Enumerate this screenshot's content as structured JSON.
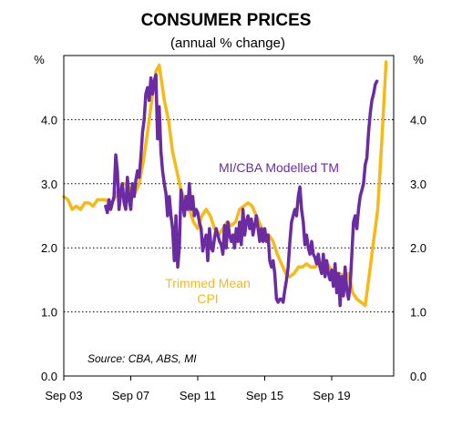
{
  "chart_data": {
    "type": "line",
    "title": "CONSUMER PRICES",
    "subtitle": "(annual % change)",
    "y_unit_left": "%",
    "y_unit_right": "%",
    "source": "Source: CBA, ABS, MI",
    "xlim": [
      2003.0,
      2022.7
    ],
    "ylim": [
      0,
      5
    ],
    "y_ticks": [
      0,
      1,
      2,
      3,
      4
    ],
    "y_tick_labels": [
      "0.0",
      "1.0",
      "2.0",
      "3.0",
      "4.0"
    ],
    "x_ticks": [
      2003,
      2007,
      2011,
      2015,
      2019
    ],
    "x_tick_labels": [
      "Sep 03",
      "Sep 07",
      "Sep 11",
      "Sep 15",
      "Sep 19"
    ],
    "grid": "horizontal-dotted",
    "series": [
      {
        "name": "Trimmed Mean CPI",
        "color": "#F7B916",
        "points": [
          [
            2003.0,
            2.8
          ],
          [
            2003.25,
            2.75
          ],
          [
            2003.5,
            2.6
          ],
          [
            2003.75,
            2.65
          ],
          [
            2004.0,
            2.6
          ],
          [
            2004.25,
            2.7
          ],
          [
            2004.5,
            2.7
          ],
          [
            2004.75,
            2.65
          ],
          [
            2005.0,
            2.75
          ],
          [
            2005.25,
            2.75
          ],
          [
            2005.5,
            2.75
          ],
          [
            2005.75,
            2.7
          ],
          [
            2006.0,
            2.75
          ],
          [
            2006.25,
            2.9
          ],
          [
            2006.5,
            3.0
          ],
          [
            2006.75,
            3.0
          ],
          [
            2007.0,
            2.9
          ],
          [
            2007.25,
            2.85
          ],
          [
            2007.5,
            3.0
          ],
          [
            2007.75,
            3.35
          ],
          [
            2008.0,
            3.8
          ],
          [
            2008.25,
            4.3
          ],
          [
            2008.5,
            4.75
          ],
          [
            2008.7,
            4.85
          ],
          [
            2009.0,
            4.3
          ],
          [
            2009.25,
            4.0
          ],
          [
            2009.5,
            3.5
          ],
          [
            2009.75,
            3.2
          ],
          [
            2010.0,
            2.9
          ],
          [
            2010.25,
            2.75
          ],
          [
            2010.5,
            2.6
          ],
          [
            2010.75,
            2.4
          ],
          [
            2011.0,
            2.3
          ],
          [
            2011.25,
            2.5
          ],
          [
            2011.5,
            2.6
          ],
          [
            2011.75,
            2.5
          ],
          [
            2012.0,
            2.3
          ],
          [
            2012.25,
            2.2
          ],
          [
            2012.5,
            2.3
          ],
          [
            2012.75,
            2.4
          ],
          [
            2013.0,
            2.35
          ],
          [
            2013.25,
            2.4
          ],
          [
            2013.5,
            2.6
          ],
          [
            2013.75,
            2.65
          ],
          [
            2014.0,
            2.7
          ],
          [
            2014.25,
            2.65
          ],
          [
            2014.5,
            2.5
          ],
          [
            2014.75,
            2.35
          ],
          [
            2015.0,
            2.2
          ],
          [
            2015.25,
            2.2
          ],
          [
            2015.5,
            2.1
          ],
          [
            2015.75,
            1.9
          ],
          [
            2016.0,
            1.75
          ],
          [
            2016.25,
            1.6
          ],
          [
            2016.5,
            1.55
          ],
          [
            2016.75,
            1.6
          ],
          [
            2017.0,
            1.7
          ],
          [
            2017.25,
            1.7
          ],
          [
            2017.5,
            1.75
          ],
          [
            2017.75,
            1.7
          ],
          [
            2018.0,
            1.7
          ],
          [
            2018.25,
            1.75
          ],
          [
            2018.5,
            1.7
          ],
          [
            2018.75,
            1.75
          ],
          [
            2019.0,
            1.65
          ],
          [
            2019.25,
            1.6
          ],
          [
            2019.5,
            1.6
          ],
          [
            2019.75,
            1.55
          ],
          [
            2020.0,
            1.6
          ],
          [
            2020.25,
            1.3
          ],
          [
            2020.5,
            1.2
          ],
          [
            2020.75,
            1.15
          ],
          [
            2021.0,
            1.1
          ],
          [
            2021.25,
            1.6
          ],
          [
            2021.5,
            2.1
          ],
          [
            2021.75,
            2.6
          ],
          [
            2022.0,
            3.7
          ],
          [
            2022.25,
            4.9
          ]
        ]
      },
      {
        "name": "MI/CBA Modelled TM",
        "color": "#6A2CA0",
        "points": [
          [
            2005.5,
            2.65
          ],
          [
            2005.6,
            2.55
          ],
          [
            2005.7,
            2.75
          ],
          [
            2005.8,
            2.6
          ],
          [
            2005.9,
            2.7
          ],
          [
            2006.0,
            2.8
          ],
          [
            2006.1,
            3.45
          ],
          [
            2006.2,
            3.2
          ],
          [
            2006.3,
            2.6
          ],
          [
            2006.4,
            2.85
          ],
          [
            2006.5,
            3.0
          ],
          [
            2006.6,
            2.7
          ],
          [
            2006.7,
            2.6
          ],
          [
            2006.8,
            3.1
          ],
          [
            2006.9,
            2.75
          ],
          [
            2007.0,
            2.6
          ],
          [
            2007.1,
            3.0
          ],
          [
            2007.2,
            2.8
          ],
          [
            2007.3,
            3.05
          ],
          [
            2007.4,
            3.2
          ],
          [
            2007.5,
            3.1
          ],
          [
            2007.6,
            3.4
          ],
          [
            2007.7,
            3.8
          ],
          [
            2007.8,
            4.0
          ],
          [
            2007.9,
            4.4
          ],
          [
            2008.0,
            4.5
          ],
          [
            2008.1,
            4.3
          ],
          [
            2008.2,
            4.65
          ],
          [
            2008.3,
            4.4
          ],
          [
            2008.4,
            4.6
          ],
          [
            2008.5,
            4.7
          ],
          [
            2008.6,
            3.7
          ],
          [
            2008.7,
            4.2
          ],
          [
            2008.8,
            3.5
          ],
          [
            2008.9,
            3.2
          ],
          [
            2009.0,
            3.0
          ],
          [
            2009.1,
            2.85
          ],
          [
            2009.2,
            2.5
          ],
          [
            2009.3,
            2.8
          ],
          [
            2009.4,
            2.5
          ],
          [
            2009.5,
            2.3
          ],
          [
            2009.6,
            1.8
          ],
          [
            2009.7,
            2.5
          ],
          [
            2009.8,
            1.7
          ],
          [
            2009.9,
            2.0
          ],
          [
            2010.0,
            2.9
          ],
          [
            2010.1,
            2.7
          ],
          [
            2010.2,
            2.5
          ],
          [
            2010.3,
            2.8
          ],
          [
            2010.4,
            2.6
          ],
          [
            2010.5,
            3.0
          ],
          [
            2010.6,
            2.6
          ],
          [
            2010.7,
            2.8
          ],
          [
            2010.8,
            2.5
          ],
          [
            2010.9,
            2.6
          ],
          [
            2011.0,
            2.55
          ],
          [
            2011.1,
            2.4
          ],
          [
            2011.2,
            2.3
          ],
          [
            2011.3,
            1.95
          ],
          [
            2011.4,
            2.1
          ],
          [
            2011.5,
            2.2
          ],
          [
            2011.6,
            1.8
          ],
          [
            2011.7,
            2.3
          ],
          [
            2011.8,
            2.0
          ],
          [
            2011.9,
            1.95
          ],
          [
            2012.0,
            2.15
          ],
          [
            2012.1,
            2.3
          ],
          [
            2012.2,
            2.2
          ],
          [
            2012.3,
            2.1
          ],
          [
            2012.4,
            2.05
          ],
          [
            2012.5,
            1.9
          ],
          [
            2012.6,
            2.35
          ],
          [
            2012.7,
            2.0
          ],
          [
            2012.8,
            2.4
          ],
          [
            2012.9,
            2.2
          ],
          [
            2013.0,
            2.1
          ],
          [
            2013.1,
            2.2
          ],
          [
            2013.2,
            2.0
          ],
          [
            2013.3,
            2.3
          ],
          [
            2013.4,
            2.1
          ],
          [
            2013.5,
            2.4
          ],
          [
            2013.6,
            2.05
          ],
          [
            2013.7,
            2.6
          ],
          [
            2013.8,
            2.2
          ],
          [
            2013.9,
            2.4
          ],
          [
            2014.0,
            2.5
          ],
          [
            2014.1,
            2.3
          ],
          [
            2014.2,
            2.45
          ],
          [
            2014.3,
            2.2
          ],
          [
            2014.4,
            2.35
          ],
          [
            2014.5,
            2.5
          ],
          [
            2014.6,
            2.3
          ],
          [
            2014.7,
            2.1
          ],
          [
            2014.8,
            2.3
          ],
          [
            2014.9,
            2.1
          ],
          [
            2015.0,
            2.3
          ],
          [
            2015.1,
            2.1
          ],
          [
            2015.2,
            2.2
          ],
          [
            2015.3,
            1.8
          ],
          [
            2015.4,
            1.7
          ],
          [
            2015.5,
            1.8
          ],
          [
            2015.6,
            1.6
          ],
          [
            2015.7,
            1.2
          ],
          [
            2015.8,
            1.15
          ],
          [
            2015.9,
            1.2
          ],
          [
            2016.0,
            1.2
          ],
          [
            2016.1,
            1.15
          ],
          [
            2016.2,
            1.35
          ],
          [
            2016.3,
            1.5
          ],
          [
            2016.4,
            1.7
          ],
          [
            2016.5,
            2.1
          ],
          [
            2016.6,
            2.4
          ],
          [
            2016.7,
            2.5
          ],
          [
            2016.8,
            2.6
          ],
          [
            2016.9,
            2.5
          ],
          [
            2017.0,
            2.8
          ],
          [
            2017.1,
            2.95
          ],
          [
            2017.2,
            2.6
          ],
          [
            2017.3,
            2.4
          ],
          [
            2017.4,
            2.05
          ],
          [
            2017.5,
            2.2
          ],
          [
            2017.6,
            2.0
          ],
          [
            2017.7,
            1.9
          ],
          [
            2017.8,
            2.1
          ],
          [
            2017.9,
            1.9
          ],
          [
            2018.0,
            1.85
          ],
          [
            2018.1,
            1.75
          ],
          [
            2018.2,
            1.9
          ],
          [
            2018.3,
            1.7
          ],
          [
            2018.4,
            1.6
          ],
          [
            2018.5,
            1.9
          ],
          [
            2018.6,
            1.55
          ],
          [
            2018.7,
            1.8
          ],
          [
            2018.8,
            1.6
          ],
          [
            2018.9,
            1.5
          ],
          [
            2019.0,
            1.65
          ],
          [
            2019.1,
            1.4
          ],
          [
            2019.2,
            1.75
          ],
          [
            2019.3,
            1.3
          ],
          [
            2019.4,
            1.6
          ],
          [
            2019.5,
            1.1
          ],
          [
            2019.6,
            1.55
          ],
          [
            2019.7,
            1.25
          ],
          [
            2019.8,
            1.7
          ],
          [
            2019.9,
            1.35
          ],
          [
            2020.0,
            1.2
          ],
          [
            2020.1,
            1.4
          ],
          [
            2020.2,
            1.9
          ],
          [
            2020.3,
            2.4
          ],
          [
            2020.4,
            2.5
          ],
          [
            2020.5,
            2.3
          ],
          [
            2020.6,
            2.6
          ],
          [
            2020.7,
            2.8
          ],
          [
            2020.8,
            2.9
          ],
          [
            2020.9,
            3.0
          ],
          [
            2021.0,
            3.3
          ],
          [
            2021.1,
            3.4
          ],
          [
            2021.2,
            3.8
          ],
          [
            2021.3,
            4.1
          ],
          [
            2021.4,
            4.3
          ],
          [
            2021.5,
            4.4
          ],
          [
            2021.6,
            4.55
          ],
          [
            2021.7,
            4.6
          ]
        ]
      }
    ],
    "annotations": [
      {
        "text": "MI/CBA Modelled TM",
        "series": 1
      },
      {
        "text": "Trimmed Mean",
        "series": 0
      },
      {
        "text": "CPI",
        "series": 0
      }
    ]
  }
}
